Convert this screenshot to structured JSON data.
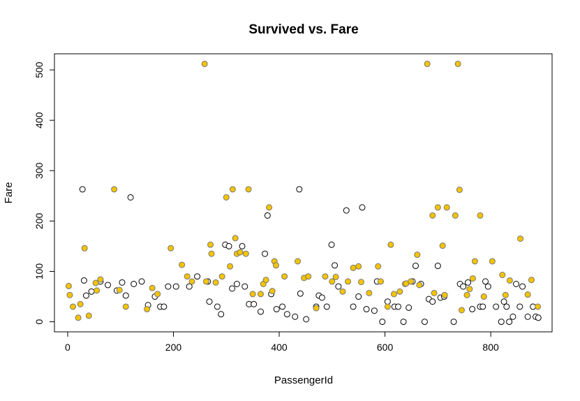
{
  "chart_data": {
    "type": "scatter",
    "title": "Survived vs. Fare",
    "xlabel": "PassengerId",
    "ylabel": "Fare",
    "xlim": [
      -25,
      916
    ],
    "ylim": [
      -20,
      532
    ],
    "x_ticks": [
      "0",
      "200",
      "400",
      "600",
      "800"
    ],
    "y_ticks": [
      "0",
      "100",
      "200",
      "300",
      "400",
      "500"
    ],
    "grid": false,
    "colors": {
      "survived_fill": "#f5c400",
      "survived_stroke": "#777777",
      "died_fill": "#ffffff",
      "died_stroke": "#000000"
    },
    "series": [
      {
        "survived": false,
        "points": [
          [
            28,
            263
          ],
          [
            31,
            82
          ],
          [
            35,
            52
          ],
          [
            45,
            60
          ],
          [
            62,
            80
          ],
          [
            76,
            73
          ],
          [
            93,
            62
          ],
          [
            103,
            78
          ],
          [
            110,
            52
          ],
          [
            119,
            247
          ],
          [
            125,
            75
          ],
          [
            140,
            80
          ],
          [
            152,
            33
          ],
          [
            165,
            50
          ],
          [
            175,
            30
          ],
          [
            182,
            30
          ],
          [
            190,
            70
          ],
          [
            205,
            70
          ],
          [
            230,
            70
          ],
          [
            245,
            90
          ],
          [
            265,
            80
          ],
          [
            268,
            40
          ],
          [
            283,
            30
          ],
          [
            290,
            15
          ],
          [
            298,
            153
          ],
          [
            305,
            150
          ],
          [
            311,
            66
          ],
          [
            320,
            75
          ],
          [
            330,
            150
          ],
          [
            335,
            70
          ],
          [
            343,
            35
          ],
          [
            352,
            35
          ],
          [
            365,
            20
          ],
          [
            373,
            135
          ],
          [
            378,
            211
          ],
          [
            385,
            55
          ],
          [
            395,
            25
          ],
          [
            406,
            30
          ],
          [
            415,
            15
          ],
          [
            430,
            10
          ],
          [
            438,
            263
          ],
          [
            440,
            56
          ],
          [
            451,
            5
          ],
          [
            470,
            30
          ],
          [
            475,
            52
          ],
          [
            481,
            48
          ],
          [
            490,
            30
          ],
          [
            499,
            153
          ],
          [
            505,
            112
          ],
          [
            512,
            70
          ],
          [
            527,
            221
          ],
          [
            540,
            30
          ],
          [
            550,
            50
          ],
          [
            557,
            227
          ],
          [
            565,
            25
          ],
          [
            580,
            22
          ],
          [
            585,
            80
          ],
          [
            595,
            0
          ],
          [
            605,
            40
          ],
          [
            618,
            30
          ],
          [
            625,
            30
          ],
          [
            635,
            0
          ],
          [
            645,
            28
          ],
          [
            652,
            80
          ],
          [
            658,
            111
          ],
          [
            668,
            75
          ],
          [
            675,
            0
          ],
          [
            683,
            45
          ],
          [
            690,
            40
          ],
          [
            700,
            111
          ],
          [
            705,
            48
          ],
          [
            712,
            50
          ],
          [
            730,
            0
          ],
          [
            742,
            75
          ],
          [
            748,
            70
          ],
          [
            757,
            78
          ],
          [
            765,
            25
          ],
          [
            780,
            30
          ],
          [
            785,
            30
          ],
          [
            790,
            80
          ],
          [
            795,
            70
          ],
          [
            810,
            30
          ],
          [
            820,
            0
          ],
          [
            825,
            40
          ],
          [
            830,
            30
          ],
          [
            835,
            0
          ],
          [
            842,
            10
          ],
          [
            848,
            75
          ],
          [
            855,
            30
          ],
          [
            860,
            70
          ],
          [
            870,
            10
          ],
          [
            880,
            30
          ],
          [
            885,
            10
          ],
          [
            890,
            8
          ]
        ]
      },
      {
        "survived": true,
        "points": [
          [
            2,
            71
          ],
          [
            4,
            53
          ],
          [
            10,
            30
          ],
          [
            20,
            8
          ],
          [
            24,
            35
          ],
          [
            32,
            146
          ],
          [
            40,
            12
          ],
          [
            53,
            77
          ],
          [
            55,
            62
          ],
          [
            62,
            84
          ],
          [
            88,
            263
          ],
          [
            98,
            63
          ],
          [
            110,
            30
          ],
          [
            150,
            25
          ],
          [
            160,
            67
          ],
          [
            170,
            55
          ],
          [
            195,
            146
          ],
          [
            216,
            113
          ],
          [
            226,
            90
          ],
          [
            235,
            80
          ],
          [
            259,
            512
          ],
          [
            262,
            80
          ],
          [
            270,
            153
          ],
          [
            272,
            135
          ],
          [
            280,
            78
          ],
          [
            292,
            90
          ],
          [
            300,
            247
          ],
          [
            307,
            110
          ],
          [
            312,
            263
          ],
          [
            317,
            166
          ],
          [
            320,
            135
          ],
          [
            326,
            138
          ],
          [
            337,
            135
          ],
          [
            342,
            263
          ],
          [
            350,
            55
          ],
          [
            365,
            55
          ],
          [
            370,
            75
          ],
          [
            375,
            83
          ],
          [
            381,
            227
          ],
          [
            387,
            61
          ],
          [
            391,
            120
          ],
          [
            394,
            112
          ],
          [
            410,
            90
          ],
          [
            435,
            120
          ],
          [
            447,
            87
          ],
          [
            455,
            90
          ],
          [
            470,
            27
          ],
          [
            487,
            90
          ],
          [
            500,
            80
          ],
          [
            507,
            89
          ],
          [
            520,
            60
          ],
          [
            530,
            80
          ],
          [
            540,
            107
          ],
          [
            550,
            110
          ],
          [
            555,
            79
          ],
          [
            570,
            57
          ],
          [
            587,
            110
          ],
          [
            592,
            80
          ],
          [
            605,
            30
          ],
          [
            611,
            153
          ],
          [
            617,
            55
          ],
          [
            628,
            60
          ],
          [
            638,
            75
          ],
          [
            640,
            76
          ],
          [
            649,
            80
          ],
          [
            661,
            133
          ],
          [
            665,
            73
          ],
          [
            680,
            512
          ],
          [
            690,
            211
          ],
          [
            693,
            57
          ],
          [
            700,
            227
          ],
          [
            709,
            151
          ],
          [
            713,
            53
          ],
          [
            717,
            227
          ],
          [
            733,
            211
          ],
          [
            738,
            512
          ],
          [
            741,
            262
          ],
          [
            745,
            23
          ],
          [
            755,
            53
          ],
          [
            760,
            65
          ],
          [
            766,
            86
          ],
          [
            770,
            120
          ],
          [
            780,
            211
          ],
          [
            787,
            50
          ],
          [
            803,
            120
          ],
          [
            822,
            93
          ],
          [
            828,
            53
          ],
          [
            836,
            82
          ],
          [
            856,
            165
          ],
          [
            870,
            54
          ],
          [
            877,
            83
          ],
          [
            889,
            30
          ]
        ]
      }
    ]
  }
}
